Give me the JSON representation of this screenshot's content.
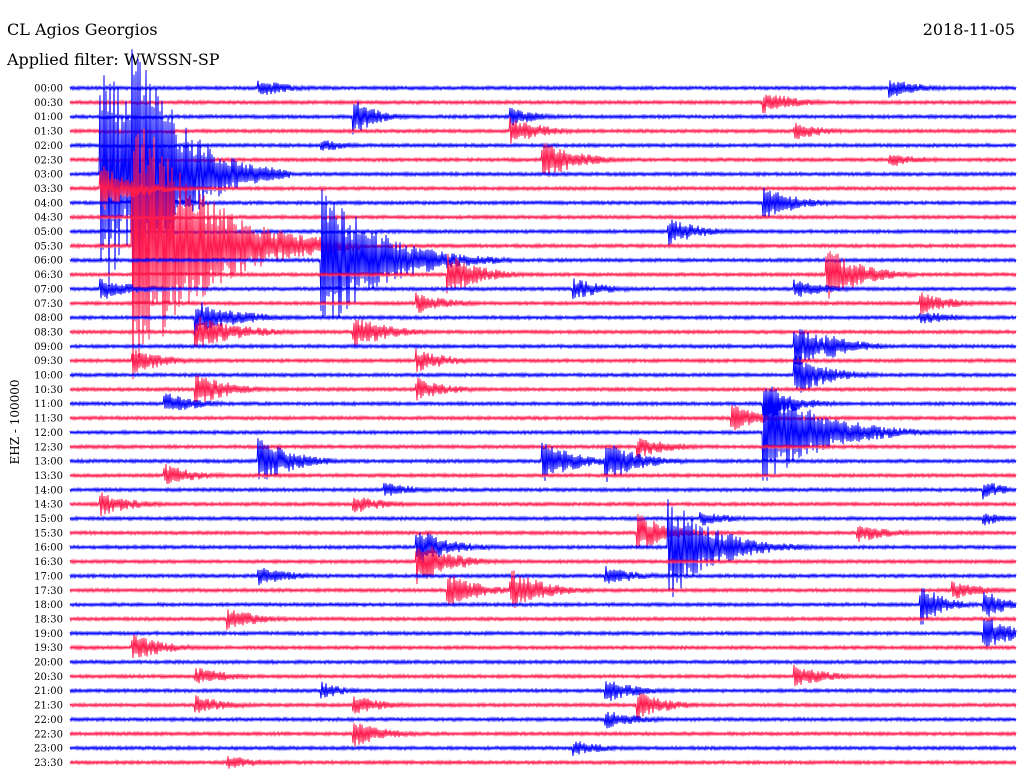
{
  "header": {
    "station": "CL Agios Georgios",
    "filter_text": "Applied filter: WWSSN-SP",
    "date": "2018-11-05"
  },
  "chart_data": {
    "type": "line",
    "title": "CL Agios Georgios",
    "subtitle": "Applied filter: WWSSN-SP",
    "date": "2018-11-05",
    "ylabel": "EHZ - 100000",
    "xlabel": "",
    "colors": [
      "#0000ff",
      "#ff1a4d"
    ],
    "grid": false,
    "rows": [
      "00:00",
      "00:30",
      "01:00",
      "01:30",
      "02:00",
      "02:30",
      "03:00",
      "03:30",
      "04:00",
      "04:30",
      "05:00",
      "05:30",
      "06:00",
      "06:30",
      "07:00",
      "07:30",
      "08:00",
      "08:30",
      "09:00",
      "09:30",
      "10:00",
      "10:30",
      "11:00",
      "11:30",
      "12:00",
      "12:30",
      "13:00",
      "13:30",
      "14:00",
      "14:30",
      "15:00",
      "15:30",
      "16:00",
      "16:30",
      "17:00",
      "17:30",
      "18:00",
      "18:30",
      "19:00",
      "19:30",
      "20:00",
      "20:30",
      "21:00",
      "21:30",
      "22:00",
      "22:30",
      "23:00",
      "23:30"
    ],
    "row_minutes": 30,
    "events": [
      {
        "row": 0,
        "minute": 6,
        "amp": 9,
        "dur": 3
      },
      {
        "row": 0,
        "minute": 26,
        "amp": 10,
        "dur": 3
      },
      {
        "row": 1,
        "minute": 22,
        "amp": 12,
        "dur": 3
      },
      {
        "row": 2,
        "minute": 14,
        "amp": 9,
        "dur": 3
      },
      {
        "row": 2,
        "minute": 9,
        "amp": 20,
        "dur": 2
      },
      {
        "row": 3,
        "minute": 14,
        "amp": 14,
        "dur": 3
      },
      {
        "row": 3,
        "minute": 23,
        "amp": 9,
        "dur": 3
      },
      {
        "row": 4,
        "minute": 8,
        "amp": 8,
        "dur": 2
      },
      {
        "row": 5,
        "minute": 15,
        "amp": 22,
        "dur": 3
      },
      {
        "row": 5,
        "minute": 26,
        "amp": 8,
        "dur": 3
      },
      {
        "row": 6,
        "minute": 1,
        "amp": 130,
        "dur": 5
      },
      {
        "row": 6,
        "minute": 2,
        "amp": 160,
        "dur": 4
      },
      {
        "row": 7,
        "minute": 1,
        "amp": 25,
        "dur": 3
      },
      {
        "row": 8,
        "minute": 2,
        "amp": 12,
        "dur": 3
      },
      {
        "row": 8,
        "minute": 22,
        "amp": 18,
        "dur": 3
      },
      {
        "row": 10,
        "minute": 19,
        "amp": 14,
        "dur": 3
      },
      {
        "row": 11,
        "minute": 2,
        "amp": 150,
        "dur": 6
      },
      {
        "row": 12,
        "minute": 8,
        "amp": 80,
        "dur": 5
      },
      {
        "row": 13,
        "minute": 12,
        "amp": 22,
        "dur": 3
      },
      {
        "row": 13,
        "minute": 24,
        "amp": 30,
        "dur": 3
      },
      {
        "row": 14,
        "minute": 1,
        "amp": 12,
        "dur": 3
      },
      {
        "row": 14,
        "minute": 16,
        "amp": 11,
        "dur": 3
      },
      {
        "row": 14,
        "minute": 23,
        "amp": 10,
        "dur": 3
      },
      {
        "row": 15,
        "minute": 11,
        "amp": 11,
        "dur": 3
      },
      {
        "row": 15,
        "minute": 27,
        "amp": 11,
        "dur": 3
      },
      {
        "row": 16,
        "minute": 4,
        "amp": 18,
        "dur": 4
      },
      {
        "row": 16,
        "minute": 27,
        "amp": 8,
        "dur": 3
      },
      {
        "row": 17,
        "minute": 4,
        "amp": 18,
        "dur": 4
      },
      {
        "row": 17,
        "minute": 9,
        "amp": 18,
        "dur": 3
      },
      {
        "row": 18,
        "minute": 23,
        "amp": 22,
        "dur": 3
      },
      {
        "row": 18,
        "minute": 24,
        "amp": 14,
        "dur": 3
      },
      {
        "row": 19,
        "minute": 2,
        "amp": 14,
        "dur": 3
      },
      {
        "row": 19,
        "minute": 11,
        "amp": 12,
        "dur": 3
      },
      {
        "row": 20,
        "minute": 23,
        "amp": 22,
        "dur": 3
      },
      {
        "row": 21,
        "minute": 4,
        "amp": 18,
        "dur": 3
      },
      {
        "row": 21,
        "minute": 11,
        "amp": 12,
        "dur": 3
      },
      {
        "row": 22,
        "minute": 3,
        "amp": 12,
        "dur": 3
      },
      {
        "row": 22,
        "minute": 22,
        "amp": 18,
        "dur": 3
      },
      {
        "row": 23,
        "minute": 21,
        "amp": 14,
        "dur": 3
      },
      {
        "row": 24,
        "minute": 22,
        "amp": 55,
        "dur": 5
      },
      {
        "row": 25,
        "minute": 18,
        "amp": 12,
        "dur": 3
      },
      {
        "row": 26,
        "minute": 6,
        "amp": 26,
        "dur": 3
      },
      {
        "row": 26,
        "minute": 15,
        "amp": 22,
        "dur": 3
      },
      {
        "row": 26,
        "minute": 17,
        "amp": 22,
        "dur": 3
      },
      {
        "row": 27,
        "minute": 3,
        "amp": 12,
        "dur": 3
      },
      {
        "row": 28,
        "minute": 10,
        "amp": 8,
        "dur": 3
      },
      {
        "row": 28,
        "minute": 29,
        "amp": 10,
        "dur": 2
      },
      {
        "row": 29,
        "minute": 1,
        "amp": 12,
        "dur": 3
      },
      {
        "row": 29,
        "minute": 9,
        "amp": 10,
        "dur": 3
      },
      {
        "row": 30,
        "minute": 20,
        "amp": 8,
        "dur": 3
      },
      {
        "row": 30,
        "minute": 29,
        "amp": 8,
        "dur": 2
      },
      {
        "row": 31,
        "minute": 18,
        "amp": 20,
        "dur": 3
      },
      {
        "row": 31,
        "minute": 25,
        "amp": 10,
        "dur": 3
      },
      {
        "row": 32,
        "minute": 11,
        "amp": 20,
        "dur": 3
      },
      {
        "row": 32,
        "minute": 19,
        "amp": 55,
        "dur": 4
      },
      {
        "row": 33,
        "minute": 11,
        "amp": 25,
        "dur": 3
      },
      {
        "row": 34,
        "minute": 6,
        "amp": 10,
        "dur": 3
      },
      {
        "row": 34,
        "minute": 17,
        "amp": 10,
        "dur": 3
      },
      {
        "row": 35,
        "minute": 12,
        "amp": 18,
        "dur": 3
      },
      {
        "row": 35,
        "minute": 14,
        "amp": 22,
        "dur": 3
      },
      {
        "row": 35,
        "minute": 28,
        "amp": 10,
        "dur": 3
      },
      {
        "row": 36,
        "minute": 27,
        "amp": 22,
        "dur": 2
      },
      {
        "row": 36,
        "minute": 29,
        "amp": 16,
        "dur": 2
      },
      {
        "row": 37,
        "minute": 5,
        "amp": 12,
        "dur": 3
      },
      {
        "row": 38,
        "minute": 29,
        "amp": 18,
        "dur": 3
      },
      {
        "row": 39,
        "minute": 2,
        "amp": 14,
        "dur": 3
      },
      {
        "row": 41,
        "minute": 4,
        "amp": 10,
        "dur": 3
      },
      {
        "row": 41,
        "minute": 23,
        "amp": 12,
        "dur": 3
      },
      {
        "row": 42,
        "minute": 8,
        "amp": 10,
        "dur": 2
      },
      {
        "row": 42,
        "minute": 17,
        "amp": 12,
        "dur": 3
      },
      {
        "row": 43,
        "minute": 4,
        "amp": 10,
        "dur": 3
      },
      {
        "row": 43,
        "minute": 9,
        "amp": 10,
        "dur": 3
      },
      {
        "row": 43,
        "minute": 18,
        "amp": 14,
        "dur": 3
      },
      {
        "row": 44,
        "minute": 17,
        "amp": 10,
        "dur": 3
      },
      {
        "row": 45,
        "minute": 9,
        "amp": 14,
        "dur": 3
      },
      {
        "row": 46,
        "minute": 16,
        "amp": 8,
        "dur": 3
      },
      {
        "row": 47,
        "minute": 5,
        "amp": 8,
        "dur": 3
      }
    ]
  }
}
